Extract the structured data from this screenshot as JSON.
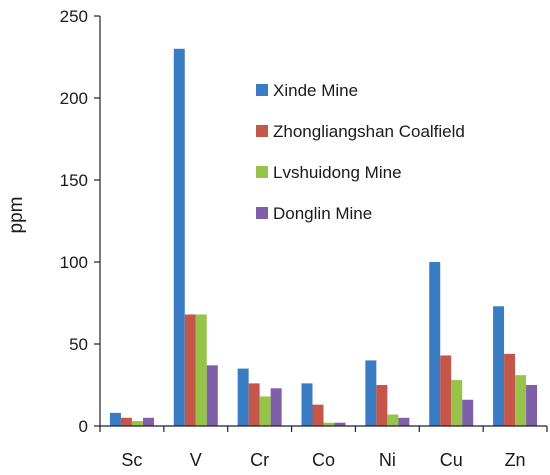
{
  "chart_data": {
    "type": "bar",
    "title": "",
    "xlabel": "",
    "ylabel": "ppm",
    "ylim": [
      0,
      250
    ],
    "yticks": [
      0,
      50,
      100,
      150,
      200,
      250
    ],
    "grid": false,
    "legend_position": "top-right",
    "categories": [
      "Sc",
      "V",
      "Cr",
      "Co",
      "Ni",
      "Cu",
      "Zn"
    ],
    "series": [
      {
        "name": "Xinde Mine",
        "color": "#3a7cc4",
        "values": [
          8,
          230,
          35,
          26,
          40,
          100,
          73
        ]
      },
      {
        "name": "Zhongliangshan Coalfield",
        "color": "#c4574a",
        "values": [
          5,
          68,
          26,
          13,
          25,
          43,
          44
        ]
      },
      {
        "name": "Lvshuidong Mine",
        "color": "#98c34a",
        "values": [
          3,
          68,
          18,
          2,
          7,
          28,
          31
        ]
      },
      {
        "name": "Donglin Mine",
        "color": "#7e5fa8",
        "values": [
          5,
          37,
          23,
          2,
          5,
          16,
          25
        ]
      }
    ]
  }
}
